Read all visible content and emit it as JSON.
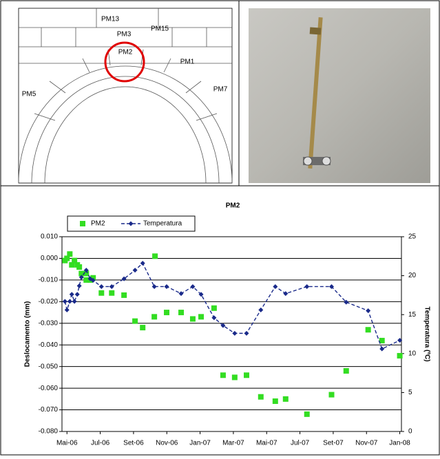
{
  "drawing_labels": [
    "PM2",
    "PM3",
    "PM15",
    "PM13",
    "PM1",
    "PM7",
    "PM5"
  ],
  "chart_data": {
    "type": "line",
    "title": "PM2",
    "y_label": "Deslocamento (mm)",
    "y2_label": "Temperatura (ºC)",
    "xlim": [
      -0.3,
      20.1
    ],
    "xticks": [
      {
        "value": 0,
        "label": "Mai-06"
      },
      {
        "value": 2,
        "label": "Jul-06"
      },
      {
        "value": 4,
        "label": "Set-06"
      },
      {
        "value": 6,
        "label": "Nov-06"
      },
      {
        "value": 8,
        "label": "Jan-07"
      },
      {
        "value": 10,
        "label": "Mar-07"
      },
      {
        "value": 12,
        "label": "Mai-07"
      },
      {
        "value": 14,
        "label": "Jul-07"
      },
      {
        "value": 16,
        "label": "Set-07"
      },
      {
        "value": 18,
        "label": "Nov-07"
      },
      {
        "value": 20,
        "label": "Jan-08"
      }
    ],
    "ylim": [
      -0.08,
      0.01
    ],
    "yticks": [
      {
        "value": -0.08,
        "label": "-0.080"
      },
      {
        "value": -0.07,
        "label": "-0.070"
      },
      {
        "value": -0.06,
        "label": "-0.060"
      },
      {
        "value": -0.05,
        "label": "-0.050"
      },
      {
        "value": -0.04,
        "label": "-0.040"
      },
      {
        "value": -0.03,
        "label": "-0.030"
      },
      {
        "value": -0.02,
        "label": "-0.020"
      },
      {
        "value": -0.01,
        "label": "-0.010"
      },
      {
        "value": 0,
        "label": "0.000"
      },
      {
        "value": 0.01,
        "label": "0.010"
      }
    ],
    "y2lim": [
      0,
      25
    ],
    "y2ticks": [
      0,
      5,
      10,
      15,
      20,
      25
    ],
    "grid": true,
    "legend": "top-left",
    "series": [
      {
        "name": "PM2",
        "color": "#33dd22",
        "marker": "square",
        "line": false,
        "x": [
          -0.12,
          0,
          0.17,
          0.29,
          0.45,
          0.62,
          0.74,
          0.87,
          1.16,
          1.16,
          1.4,
          1.57,
          2.07,
          2.69,
          3.43,
          4.09,
          4.55,
          5.25,
          5.29,
          5.99,
          6.86,
          7.56,
          8.06,
          8.84,
          9.38,
          10.08,
          10.79,
          11.65,
          12.52,
          13.14,
          14.42,
          15.9,
          16.78,
          18.1,
          18.93,
          20
        ],
        "values": [
          -0.001,
          0.0,
          0.002,
          -0.003,
          -0.001,
          -0.003,
          -0.004,
          -0.007,
          -0.007,
          -0.01,
          -0.01,
          -0.009,
          -0.016,
          -0.016,
          -0.017,
          -0.029,
          -0.032,
          -0.027,
          0.001,
          -0.025,
          -0.025,
          -0.028,
          -0.027,
          -0.023,
          -0.054,
          -0.055,
          -0.054,
          -0.064,
          -0.066,
          -0.065,
          -0.072,
          -0.063,
          -0.052,
          -0.033,
          -0.038,
          -0.045
        ]
      },
      {
        "name": "Temperatura",
        "color": "#1a2a8a",
        "marker": "diamond",
        "line": true,
        "axis": "y2",
        "x": [
          -0.12,
          0,
          0.17,
          0.29,
          0.45,
          0.62,
          0.74,
          0.87,
          1.16,
          1.4,
          1.57,
          2.07,
          2.69,
          3.43,
          4.09,
          4.55,
          5.25,
          5.99,
          6.86,
          7.56,
          8.06,
          8.84,
          9.38,
          10.08,
          10.79,
          11.65,
          12.52,
          13.14,
          14.42,
          15.9,
          16.78,
          18.1,
          18.93,
          20
        ],
        "values": [
          16.7,
          15.6,
          16.7,
          17.6,
          16.7,
          17.6,
          18.7,
          19.8,
          20.7,
          19.6,
          19.4,
          18.6,
          18.6,
          19.6,
          20.7,
          21.6,
          18.6,
          18.6,
          17.7,
          18.6,
          17.6,
          14.6,
          13.6,
          12.6,
          12.6,
          15.6,
          18.6,
          17.7,
          18.6,
          18.6,
          16.6,
          15.5,
          10.6,
          11.7
        ]
      }
    ]
  }
}
